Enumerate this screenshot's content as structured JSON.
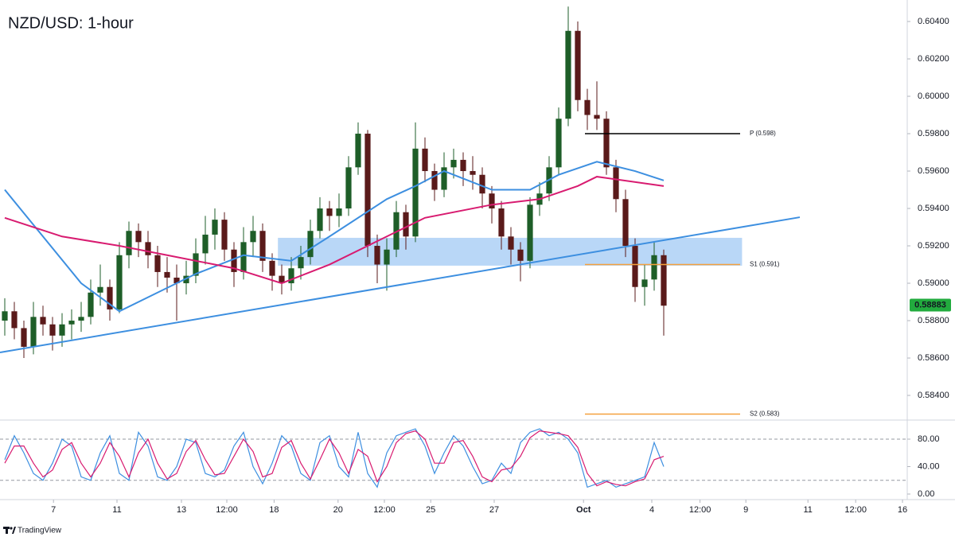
{
  "chart_data": [
    {
      "type": "candlestick",
      "title": "NZD/USD: 1-hour",
      "xlim": [
        -0.5,
        94.5
      ],
      "ylim": [
        0.58281,
        0.60515
      ],
      "yticks": [
        {
          "value": 0.584,
          "label": "0.58400"
        },
        {
          "value": 0.586,
          "label": "0.58600"
        },
        {
          "value": 0.588,
          "label": "0.58800"
        },
        {
          "value": 0.59,
          "label": "0.59000"
        },
        {
          "value": 0.592,
          "label": "0.59200"
        },
        {
          "value": 0.594,
          "label": "0.59400"
        },
        {
          "value": 0.596,
          "label": "0.59600"
        },
        {
          "value": 0.598,
          "label": "0.59800"
        },
        {
          "value": 0.6,
          "label": "0.60000"
        },
        {
          "value": 0.602,
          "label": "0.60200"
        },
        {
          "value": 0.604,
          "label": "0.60400"
        }
      ],
      "up_color": "#1e5e28",
      "down_color": "#5a1a1a",
      "x": [
        0,
        1,
        2,
        3,
        4,
        5,
        6,
        7,
        8,
        9,
        10,
        11,
        12,
        13,
        14,
        15,
        16,
        17,
        18,
        19,
        20,
        21,
        22,
        23,
        24,
        25,
        26,
        27,
        28,
        29,
        30,
        31,
        32,
        33,
        34,
        35,
        36,
        37,
        38,
        39,
        40,
        41,
        42,
        43,
        44,
        45,
        46,
        47,
        48,
        49,
        50,
        51,
        52,
        53,
        54,
        55,
        56,
        57,
        58,
        59,
        60,
        61,
        62,
        63,
        64,
        65,
        66,
        67,
        68,
        69
      ],
      "open": [
        0.588,
        0.5885,
        0.5876,
        0.5866,
        0.5882,
        0.5878,
        0.5872,
        0.5878,
        0.588,
        0.5882,
        0.5895,
        0.5898,
        0.5886,
        0.5915,
        0.5928,
        0.5922,
        0.5915,
        0.5906,
        0.5903,
        0.59,
        0.5904,
        0.5916,
        0.5926,
        0.5934,
        0.5918,
        0.5906,
        0.5922,
        0.5928,
        0.5912,
        0.5904,
        0.59,
        0.5908,
        0.5914,
        0.5928,
        0.594,
        0.5936,
        0.594,
        0.5962,
        0.598,
        0.592,
        0.591,
        0.5918,
        0.5938,
        0.5925,
        0.5972,
        0.596,
        0.595,
        0.5962,
        0.5966,
        0.596,
        0.5958,
        0.5948,
        0.594,
        0.5925,
        0.5918,
        0.5912,
        0.5942,
        0.5948,
        0.5962,
        0.5988,
        0.6035,
        0.5998,
        0.599,
        0.5988,
        0.5962,
        0.5945,
        0.592,
        0.5898,
        0.5902,
        0.5915
      ],
      "high": [
        0.5892,
        0.589,
        0.588,
        0.589,
        0.5888,
        0.5882,
        0.5884,
        0.5886,
        0.589,
        0.5902,
        0.591,
        0.5902,
        0.5922,
        0.5933,
        0.5932,
        0.5928,
        0.592,
        0.5914,
        0.591,
        0.5912,
        0.5924,
        0.5936,
        0.594,
        0.5938,
        0.5922,
        0.593,
        0.5936,
        0.5932,
        0.5916,
        0.591,
        0.5914,
        0.592,
        0.5934,
        0.5946,
        0.5944,
        0.5948,
        0.5968,
        0.5986,
        0.5982,
        0.5926,
        0.5924,
        0.5944,
        0.5942,
        0.5986,
        0.5978,
        0.5964,
        0.597,
        0.5972,
        0.597,
        0.5968,
        0.5962,
        0.5952,
        0.5944,
        0.593,
        0.5922,
        0.5946,
        0.5954,
        0.5968,
        0.5994,
        0.6048,
        0.604,
        0.6004,
        0.6008,
        0.5992,
        0.5966,
        0.595,
        0.5924,
        0.591,
        0.5922,
        0.5918
      ],
      "low": [
        0.5872,
        0.587,
        0.586,
        0.5862,
        0.5872,
        0.5864,
        0.5866,
        0.587,
        0.5874,
        0.5878,
        0.5888,
        0.588,
        0.5884,
        0.5908,
        0.5914,
        0.5908,
        0.5898,
        0.5895,
        0.588,
        0.5894,
        0.59,
        0.591,
        0.5918,
        0.5912,
        0.5898,
        0.5902,
        0.5914,
        0.5906,
        0.5896,
        0.5894,
        0.5896,
        0.5902,
        0.591,
        0.5924,
        0.5928,
        0.593,
        0.5936,
        0.5958,
        0.5914,
        0.59,
        0.5896,
        0.5914,
        0.5918,
        0.5922,
        0.5954,
        0.5944,
        0.5946,
        0.5956,
        0.5952,
        0.595,
        0.594,
        0.5932,
        0.5918,
        0.591,
        0.5901,
        0.5908,
        0.5936,
        0.5944,
        0.5958,
        0.5984,
        0.5992,
        0.5982,
        0.5982,
        0.5958,
        0.5938,
        0.5914,
        0.589,
        0.5888,
        0.5896,
        0.5872
      ],
      "close": [
        0.5885,
        0.5876,
        0.5866,
        0.5882,
        0.5878,
        0.5872,
        0.5878,
        0.588,
        0.5882,
        0.5895,
        0.5898,
        0.5886,
        0.5915,
        0.5928,
        0.5922,
        0.5915,
        0.5906,
        0.5903,
        0.59,
        0.5904,
        0.5916,
        0.5926,
        0.5934,
        0.5918,
        0.5906,
        0.5922,
        0.5928,
        0.5912,
        0.5904,
        0.59,
        0.5908,
        0.5914,
        0.5928,
        0.594,
        0.5936,
        0.594,
        0.5962,
        0.598,
        0.592,
        0.591,
        0.5918,
        0.5938,
        0.5925,
        0.5972,
        0.596,
        0.595,
        0.5962,
        0.5966,
        0.596,
        0.5958,
        0.5948,
        0.594,
        0.5925,
        0.5918,
        0.5912,
        0.5942,
        0.5948,
        0.5962,
        0.5988,
        0.6035,
        0.5998,
        0.599,
        0.5988,
        0.5962,
        0.5945,
        0.592,
        0.5898,
        0.5902,
        0.5915,
        0.5888
      ],
      "series": [
        {
          "color": "#3d8fe0",
          "x": [
            0,
            4,
            8,
            12,
            16,
            20,
            25,
            30,
            34,
            40,
            43,
            46,
            51,
            55,
            58,
            62,
            66,
            69
          ],
          "values": [
            0.595,
            0.5925,
            0.59,
            0.5885,
            0.5895,
            0.5905,
            0.5915,
            0.5912,
            0.5925,
            0.5945,
            0.5952,
            0.596,
            0.595,
            0.595,
            0.5958,
            0.5965,
            0.596,
            0.5955
          ]
        },
        {
          "color": "#d81b70",
          "x": [
            0,
            6,
            12,
            17,
            24,
            29,
            34,
            40,
            44,
            51,
            56,
            60,
            62,
            69
          ],
          "values": [
            0.5935,
            0.5925,
            0.592,
            0.5915,
            0.5908,
            0.59,
            0.591,
            0.5925,
            0.5935,
            0.5942,
            0.5945,
            0.5952,
            0.5957,
            0.5952
          ]
        }
      ],
      "zone": {
        "color": "#a8cdf5",
        "x": [
          28.6,
          77.2
        ],
        "y": [
          0.59094,
          0.59243
        ]
      },
      "trendline": {
        "color": "#3d8fe0",
        "x": [
          -0.5,
          83.25
        ],
        "values": [
          0.5863,
          0.59353
        ]
      },
      "levels": [
        {
          "label": "P (0.598)",
          "value": 0.598,
          "x": [
            60.75,
            77
          ],
          "color": "#000000"
        },
        {
          "label": "S1 (0.591)",
          "value": 0.591,
          "x": [
            60.75,
            77
          ],
          "color": "#f5a03c"
        },
        {
          "label": "S2 (0.583)",
          "value": 0.583,
          "x": [
            60.75,
            77
          ],
          "color": "#f5a03c"
        }
      ],
      "last_price": {
        "value": 0.58883,
        "label": "0.58883",
        "color": "#22ab3e"
      }
    },
    {
      "type": "line",
      "xlim": [
        -0.5,
        94.5
      ],
      "ylim": [
        -8.1,
        105.5
      ],
      "yticks": [
        {
          "value": 80,
          "label": "80.00"
        },
        {
          "value": 40,
          "label": "40.00"
        },
        {
          "value": 0,
          "label": "0.00"
        }
      ],
      "bands": [
        80,
        20
      ],
      "xticks": [
        {
          "value": 5.1,
          "label": "7"
        },
        {
          "value": 11.75,
          "label": "11"
        },
        {
          "value": 18.5,
          "label": "13"
        },
        {
          "value": 23.25,
          "label": "12:00"
        },
        {
          "value": 28.2,
          "label": "18"
        },
        {
          "value": 34.9,
          "label": "20"
        },
        {
          "value": 39.75,
          "label": "12:00"
        },
        {
          "value": 44.6,
          "label": "25"
        },
        {
          "value": 51.25,
          "label": "27"
        },
        {
          "value": 60.6,
          "label": "Oct"
        },
        {
          "value": 67.75,
          "label": "4"
        },
        {
          "value": 72.8,
          "label": "12:00"
        },
        {
          "value": 77.6,
          "label": "9"
        },
        {
          "value": 84.1,
          "label": "11"
        },
        {
          "value": 89.1,
          "label": "12:00"
        },
        {
          "value": 94,
          "label": "16"
        }
      ],
      "x": [
        0,
        1,
        2,
        3,
        4,
        5,
        6,
        7,
        8,
        9,
        10,
        11,
        12,
        13,
        14,
        15,
        16,
        17,
        18,
        19,
        20,
        21,
        22,
        23,
        24,
        25,
        26,
        27,
        28,
        29,
        30,
        31,
        32,
        33,
        34,
        35,
        36,
        37,
        38,
        39,
        40,
        41,
        42,
        43,
        44,
        45,
        46,
        47,
        48,
        49,
        50,
        51,
        52,
        53,
        54,
        55,
        56,
        57,
        58,
        59,
        60,
        61,
        62,
        63,
        64,
        65,
        66,
        67,
        68,
        69
      ],
      "series": [
        {
          "color": "#3d8fe0",
          "values": [
            50,
            85,
            60,
            30,
            20,
            45,
            80,
            70,
            25,
            20,
            60,
            85,
            30,
            20,
            90,
            70,
            25,
            20,
            40,
            80,
            75,
            30,
            25,
            35,
            70,
            90,
            40,
            15,
            45,
            85,
            70,
            30,
            20,
            75,
            85,
            40,
            25,
            90,
            30,
            10,
            60,
            85,
            90,
            95,
            70,
            30,
            60,
            85,
            70,
            40,
            15,
            20,
            45,
            30,
            75,
            90,
            95,
            85,
            90,
            80,
            60,
            10,
            15,
            20,
            10,
            15,
            20,
            25,
            75,
            40
          ]
        },
        {
          "color": "#d81b70",
          "values": [
            45,
            70,
            70,
            45,
            25,
            35,
            65,
            75,
            45,
            25,
            45,
            75,
            55,
            25,
            60,
            80,
            45,
            22,
            30,
            62,
            78,
            50,
            28,
            30,
            55,
            80,
            62,
            25,
            30,
            68,
            78,
            45,
            22,
            50,
            80,
            60,
            30,
            65,
            55,
            18,
            40,
            75,
            88,
            92,
            80,
            45,
            45,
            75,
            78,
            55,
            25,
            18,
            35,
            38,
            55,
            82,
            92,
            90,
            88,
            85,
            68,
            30,
            12,
            18,
            14,
            12,
            18,
            22,
            50,
            55
          ]
        }
      ]
    }
  ],
  "footer": "TradingView"
}
